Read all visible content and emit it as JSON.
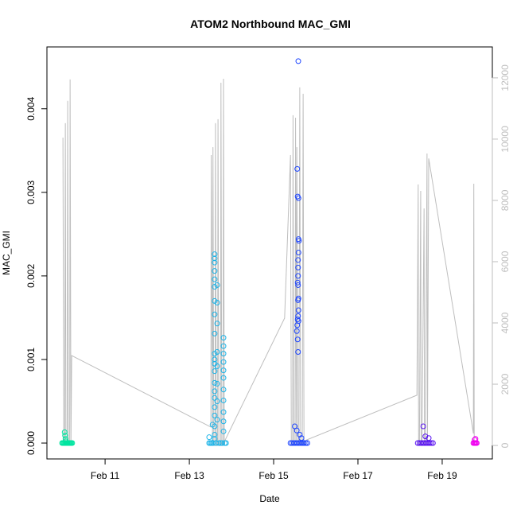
{
  "chart_data": {
    "type": "scatter",
    "title": "ATOM2 Northbound MAC_GMI",
    "x_label": "Date",
    "y_label": "MAC_GMI",
    "xlim": [
      9.62,
      20.19
    ],
    "xticks": [
      {
        "value": 11,
        "label": "Feb 11"
      },
      {
        "value": 13,
        "label": "Feb 13"
      },
      {
        "value": 15,
        "label": "Feb 15"
      },
      {
        "value": 17,
        "label": "Feb 17"
      },
      {
        "value": 19,
        "label": "Feb 19"
      }
    ],
    "ylim": [
      -0.00019,
      0.00474
    ],
    "yticks": [
      {
        "value": 0,
        "label": "0.000"
      },
      {
        "value": 0.001,
        "label": "0.001"
      },
      {
        "value": 0.002,
        "label": "0.002"
      },
      {
        "value": 0.003,
        "label": "0.003"
      },
      {
        "value": 0.004,
        "label": "0.004"
      }
    ],
    "y2lim": [
      -440,
      13010
    ],
    "y2ticks": [
      0,
      2000,
      4000,
      6000,
      8000,
      10000,
      12000
    ],
    "y2_color": "#bebebe",
    "series": [
      {
        "color": "#00e5a0",
        "x": [
          9.98,
          10.0,
          10.02,
          10.04,
          10.06,
          10.08,
          10.1,
          10.12,
          10.14,
          10.16,
          10.18,
          10.2,
          10.22,
          10.04,
          10.05,
          10.06,
          10.07
        ],
        "values": [
          0,
          0,
          0,
          0,
          0,
          0,
          0,
          0,
          0,
          0,
          0,
          0,
          0,
          0.00013,
          9e-05,
          5e-05,
          2e-05
        ]
      },
      {
        "color": "#1cb4e8",
        "x": [
          13.6,
          13.6,
          13.6,
          13.6,
          13.6,
          13.6,
          13.6,
          13.6,
          13.6,
          13.6,
          13.6,
          13.6,
          13.6,
          13.6,
          13.6,
          13.6,
          13.6,
          13.6,
          13.6,
          13.6,
          13.6,
          13.66,
          13.66,
          13.66,
          13.66,
          13.66,
          13.66,
          13.66,
          13.66,
          13.81,
          13.81,
          13.81,
          13.81,
          13.81,
          13.81,
          13.81,
          13.81,
          13.81,
          13.81,
          13.81,
          13.47,
          13.5,
          13.53,
          13.56,
          13.63,
          13.7,
          13.74,
          13.78,
          13.84,
          13.87,
          13.47,
          13.55
        ],
        "values": [
          0.00226,
          0.00221,
          0.00216,
          0.00206,
          0.00196,
          0.00187,
          0.0017,
          0.00154,
          0.00131,
          0.00107,
          0.001,
          0.00095,
          0.00086,
          0.00072,
          0.00062,
          0.00054,
          0.00043,
          0.00033,
          0.0002,
          0.0001,
          5e-05,
          0.00189,
          0.00168,
          0.00143,
          0.00109,
          0.00092,
          0.00071,
          0.0005,
          0.00028,
          0.00126,
          0.00116,
          0.00107,
          0.00097,
          0.00087,
          0.00078,
          0.00064,
          0.00051,
          0.00037,
          0.00026,
          0.00014,
          0,
          0,
          0,
          0,
          0,
          0,
          0,
          0,
          0,
          0,
          7e-05,
          0.00022
        ]
      },
      {
        "color": "#1e46ff",
        "x": [
          15.585,
          15.56,
          15.57,
          15.59,
          15.59,
          15.6,
          15.59,
          15.58,
          15.58,
          15.58,
          15.57,
          15.58,
          15.59,
          15.58,
          15.59,
          15.58,
          15.57,
          15.59,
          15.56,
          15.55,
          15.57,
          15.58,
          15.5,
          15.55,
          15.62,
          15.66,
          15.4,
          15.44,
          15.48,
          15.52,
          15.56,
          15.6,
          15.64,
          15.68,
          15.72,
          15.76,
          15.8
        ],
        "values": [
          0.00457,
          0.00328,
          0.00295,
          0.00293,
          0.00244,
          0.00242,
          0.00228,
          0.00219,
          0.0021,
          0.002,
          0.00192,
          0.00189,
          0.00173,
          0.00171,
          0.00159,
          0.00152,
          0.00148,
          0.00146,
          0.00141,
          0.00134,
          0.00124,
          0.00109,
          0.0002,
          0.00015,
          0.0001,
          6e-05,
          0,
          0,
          0,
          0,
          0,
          0,
          0,
          0,
          0,
          0,
          0
        ]
      },
      {
        "color": "#5a14f0",
        "x": [
          18.42,
          18.46,
          18.5,
          18.54,
          18.58,
          18.62,
          18.66,
          18.7,
          18.74,
          18.78,
          18.55,
          18.6,
          18.68
        ],
        "values": [
          0,
          0,
          0,
          0,
          0,
          0,
          0,
          0,
          0,
          0,
          0.0002,
          8e-05,
          6e-05
        ]
      },
      {
        "color": "#f000f0",
        "x": [
          19.74,
          19.76,
          19.78,
          19.8,
          19.82,
          19.77,
          19.79
        ],
        "values": [
          0,
          0,
          0,
          0,
          0,
          4e-05,
          5e-05
        ]
      },
      {
        "type": "line",
        "axis": "y2",
        "color": "#bebebe",
        "x": [
          10.0,
          10.02,
          10.04,
          10.057,
          10.07,
          10.1,
          10.113,
          10.13,
          10.16,
          10.17,
          10.19,
          10.208,
          13.51,
          13.52,
          13.55,
          13.56,
          13.58,
          13.61,
          13.62,
          13.64,
          13.67,
          13.68,
          13.7,
          13.74,
          13.75,
          13.77,
          13.8,
          13.81,
          13.83,
          13.85,
          15.26,
          15.4,
          15.42,
          15.45,
          15.46,
          15.48,
          15.51,
          15.52,
          15.54,
          15.55,
          15.58,
          15.6,
          15.62,
          15.64,
          15.68,
          15.7,
          15.72,
          15.74,
          15.75,
          15.78,
          18.4,
          18.43,
          18.44,
          18.46,
          18.49,
          18.5,
          18.52,
          18.57,
          18.58,
          18.6,
          18.64,
          18.65,
          18.68,
          19.74,
          19.75,
          19.76
        ],
        "values": [
          10050,
          0,
          0,
          10520,
          0,
          0,
          11250,
          0,
          0,
          11950,
          0,
          2935,
          600,
          9480,
          0,
          9740,
          0,
          0,
          10520,
          0,
          0,
          10650,
          0,
          0,
          11840,
          0,
          0,
          11970,
          0,
          180,
          4155,
          9480,
          0,
          0,
          10780,
          0,
          0,
          10700,
          0,
          9740,
          0,
          0,
          11690,
          0,
          0,
          11480,
          0,
          0,
          100,
          180,
          1640,
          8520,
          0,
          0,
          8310,
          0,
          0,
          7740,
          0,
          0,
          9530,
          0,
          9370,
          390,
          8545,
          0
        ]
      }
    ]
  }
}
